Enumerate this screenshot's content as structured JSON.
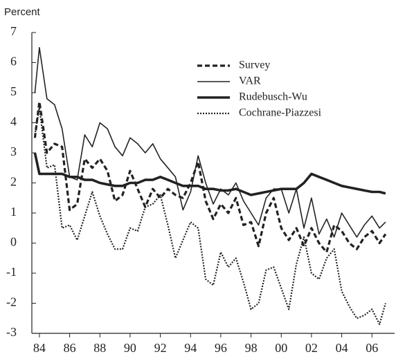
{
  "chart_data": {
    "type": "line",
    "y_label": "Percent",
    "x": [
      1983.7,
      1984,
      1984.5,
      1985,
      1985.5,
      1986,
      1986.5,
      1987,
      1987.5,
      1988,
      1988.5,
      1989,
      1989.5,
      1990,
      1990.5,
      1991,
      1991.5,
      1992,
      1992.5,
      1993,
      1993.5,
      1994,
      1994.5,
      1995,
      1995.5,
      1996,
      1996.5,
      1997,
      1997.5,
      1998,
      1998.5,
      1999,
      1999.5,
      2000,
      2000.5,
      2001,
      2001.5,
      2002,
      2002.5,
      2003,
      2003.5,
      2004,
      2004.5,
      2005,
      2005.5,
      2006,
      2006.5,
      2006.9
    ],
    "series": [
      {
        "name": "Survey",
        "color": "#222222",
        "width": 3.2,
        "dash": "7 4",
        "values": [
          3.5,
          4.7,
          3.0,
          3.3,
          3.2,
          1.1,
          1.3,
          2.8,
          2.5,
          2.8,
          2.4,
          1.4,
          1.6,
          2.4,
          1.8,
          1.2,
          1.8,
          1.5,
          1.8,
          1.6,
          1.5,
          2.0,
          2.7,
          1.4,
          0.8,
          1.3,
          1.0,
          1.5,
          0.6,
          0.7,
          -0.1,
          1.0,
          1.5,
          0.5,
          0.1,
          0.5,
          -0.1,
          0.5,
          0.0,
          -0.3,
          0.6,
          0.4,
          0.0,
          -0.2,
          0.2,
          0.4,
          0.0,
          0.3
        ]
      },
      {
        "name": "VAR",
        "color": "#222222",
        "width": 1.6,
        "dash": "none",
        "values": [
          5.0,
          6.5,
          4.8,
          4.6,
          3.8,
          2.2,
          2.1,
          3.6,
          3.2,
          4.0,
          3.8,
          3.2,
          2.9,
          3.5,
          3.3,
          3.0,
          3.3,
          2.8,
          2.5,
          2.2,
          1.1,
          1.7,
          2.9,
          2.0,
          1.3,
          1.8,
          1.6,
          2.0,
          1.4,
          1.0,
          0.6,
          1.5,
          1.8,
          1.8,
          1.0,
          1.8,
          0.5,
          1.5,
          0.3,
          0.8,
          0.2,
          1.0,
          0.6,
          0.2,
          0.6,
          0.9,
          0.5,
          0.7
        ]
      },
      {
        "name": "Rudebusch-Wu",
        "color": "#222222",
        "width": 3.6,
        "dash": "none",
        "values": [
          3.0,
          2.3,
          2.3,
          2.3,
          2.3,
          2.2,
          2.2,
          2.1,
          2.1,
          2.0,
          1.95,
          1.9,
          1.9,
          2.0,
          2.0,
          2.1,
          2.1,
          2.2,
          2.1,
          2.0,
          1.9,
          1.9,
          1.9,
          1.8,
          1.8,
          1.75,
          1.75,
          1.8,
          1.7,
          1.6,
          1.65,
          1.7,
          1.75,
          1.8,
          1.8,
          1.8,
          2.0,
          2.3,
          2.2,
          2.1,
          2.0,
          1.9,
          1.85,
          1.8,
          1.75,
          1.7,
          1.7,
          1.65
        ]
      },
      {
        "name": "Cochrane-Piazzesi",
        "color": "#222222",
        "width": 2.2,
        "dash": "2 2",
        "values": [
          3.6,
          4.5,
          2.5,
          2.6,
          0.5,
          0.6,
          0.1,
          0.9,
          1.7,
          0.9,
          0.3,
          -0.2,
          -0.2,
          0.5,
          0.4,
          1.2,
          1.3,
          1.6,
          0.6,
          -0.5,
          0.1,
          0.7,
          0.5,
          -1.2,
          -1.4,
          -0.3,
          -0.8,
          -0.5,
          -1.3,
          -2.2,
          -2.0,
          -0.9,
          -0.8,
          -1.5,
          -2.2,
          -0.7,
          0.2,
          -1.0,
          -1.2,
          -0.5,
          -0.2,
          -1.6,
          -2.1,
          -2.5,
          -2.4,
          -2.2,
          -2.7,
          -2.0
        ]
      }
    ],
    "xlim": [
      1983.5,
      2007.5
    ],
    "ylim": [
      -3,
      7
    ],
    "yticks": [
      -3,
      -2,
      -1,
      0,
      1,
      2,
      3,
      4,
      5,
      6,
      7
    ],
    "xticks": [
      {
        "value": 1984,
        "label": "84"
      },
      {
        "value": 1986,
        "label": "86"
      },
      {
        "value": 1988,
        "label": "88"
      },
      {
        "value": 1990,
        "label": "90"
      },
      {
        "value": 1992,
        "label": "92"
      },
      {
        "value": 1994,
        "label": "94"
      },
      {
        "value": 1996,
        "label": "96"
      },
      {
        "value": 1998,
        "label": "98"
      },
      {
        "value": 2000,
        "label": "00"
      },
      {
        "value": 2002,
        "label": "02"
      },
      {
        "value": 2004,
        "label": "04"
      },
      {
        "value": 2006,
        "label": "06"
      }
    ],
    "grid": false
  }
}
